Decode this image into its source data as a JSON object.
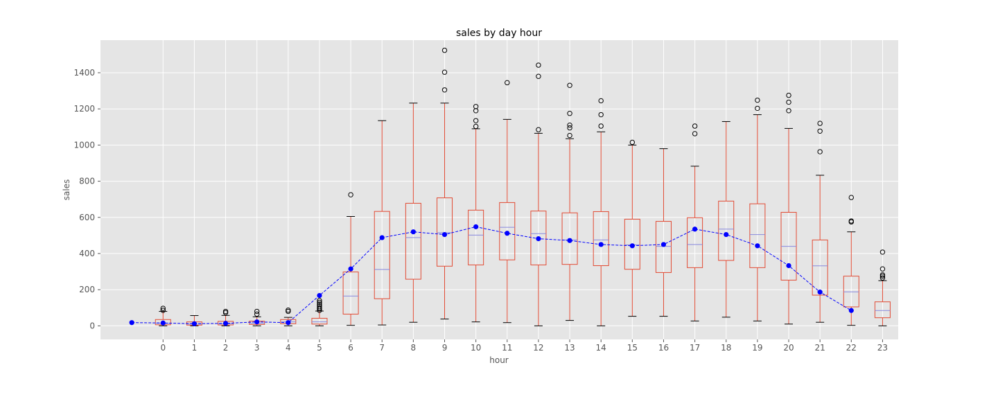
{
  "chart_data": {
    "type": "box",
    "title": "sales by day hour",
    "xlabel": "hour",
    "ylabel": "sales",
    "categories": [
      "0",
      "1",
      "2",
      "3",
      "4",
      "5",
      "6",
      "7",
      "8",
      "9",
      "10",
      "11",
      "12",
      "13",
      "14",
      "15",
      "16",
      "17",
      "18",
      "19",
      "20",
      "21",
      "22",
      "23"
    ],
    "x_range": [
      -2,
      23.5
    ],
    "ylim": [
      -75,
      1580
    ],
    "yticks": [
      0,
      200,
      400,
      600,
      800,
      1000,
      1200,
      1400
    ],
    "grid": true,
    "background": "#E5E5E5",
    "box_color": "#E24A33",
    "median_color": "#8888DD",
    "mean_color": "#0000FF",
    "boxes": [
      {
        "x": 0,
        "whislo": 0,
        "q1": 6,
        "med": 14,
        "q3": 35,
        "whishi": 80,
        "fliers": [
          86,
          97
        ]
      },
      {
        "x": 1,
        "whislo": 0,
        "q1": 4,
        "med": 10,
        "q3": 22,
        "whishi": 57,
        "fliers": []
      },
      {
        "x": 2,
        "whislo": 0,
        "q1": 5,
        "med": 11,
        "q3": 25,
        "whishi": 58,
        "fliers": [
          73,
          80
        ]
      },
      {
        "x": 3,
        "whislo": 0,
        "q1": 8,
        "med": 15,
        "q3": 26,
        "whishi": 50,
        "fliers": [
          65,
          80
        ]
      },
      {
        "x": 4,
        "whislo": 0,
        "q1": 12,
        "med": 22,
        "q3": 35,
        "whishi": 47,
        "fliers": [
          80,
          87
        ]
      },
      {
        "x": 5,
        "whislo": 0,
        "q1": 10,
        "med": 22,
        "q3": 42,
        "whishi": 82,
        "fliers": [
          86,
          95,
          100,
          110,
          120,
          130,
          140
        ]
      },
      {
        "x": 6,
        "whislo": 3,
        "q1": 65,
        "med": 165,
        "q3": 298,
        "whishi": 605,
        "fliers": [
          725
        ]
      },
      {
        "x": 7,
        "whislo": 5,
        "q1": 150,
        "med": 312,
        "q3": 633,
        "whishi": 1135,
        "fliers": []
      },
      {
        "x": 8,
        "whislo": 20,
        "q1": 258,
        "med": 488,
        "q3": 678,
        "whishi": 1232,
        "fliers": []
      },
      {
        "x": 9,
        "whislo": 38,
        "q1": 330,
        "med": 515,
        "q3": 708,
        "whishi": 1232,
        "fliers": [
          1305,
          1403,
          1524
        ]
      },
      {
        "x": 10,
        "whislo": 22,
        "q1": 337,
        "med": 502,
        "q3": 640,
        "whishi": 1090,
        "fliers": [
          1103,
          1135,
          1190,
          1213
        ]
      },
      {
        "x": 11,
        "whislo": 18,
        "q1": 365,
        "med": 545,
        "q3": 682,
        "whishi": 1142,
        "fliers": [
          1345
        ]
      },
      {
        "x": 12,
        "whislo": 0,
        "q1": 337,
        "med": 510,
        "q3": 635,
        "whishi": 1065,
        "fliers": [
          1085,
          1380,
          1442
        ]
      },
      {
        "x": 13,
        "whislo": 30,
        "q1": 340,
        "med": 475,
        "q3": 625,
        "whishi": 1035,
        "fliers": [
          1053,
          1095,
          1110,
          1175,
          1330
        ]
      },
      {
        "x": 14,
        "whislo": 0,
        "q1": 333,
        "med": 475,
        "q3": 632,
        "whishi": 1073,
        "fliers": [
          1105,
          1168,
          1245
        ]
      },
      {
        "x": 15,
        "whislo": 53,
        "q1": 313,
        "med": 448,
        "q3": 590,
        "whishi": 1000,
        "fliers": [
          1015
        ]
      },
      {
        "x": 16,
        "whislo": 53,
        "q1": 295,
        "med": 440,
        "q3": 578,
        "whishi": 980,
        "fliers": []
      },
      {
        "x": 17,
        "whislo": 27,
        "q1": 322,
        "med": 450,
        "q3": 598,
        "whishi": 883,
        "fliers": [
          1063,
          1105
        ]
      },
      {
        "x": 18,
        "whislo": 48,
        "q1": 362,
        "med": 535,
        "q3": 690,
        "whishi": 1130,
        "fliers": []
      },
      {
        "x": 19,
        "whislo": 27,
        "q1": 322,
        "med": 505,
        "q3": 675,
        "whishi": 1168,
        "fliers": [
          1203,
          1248
        ]
      },
      {
        "x": 20,
        "whislo": 10,
        "q1": 253,
        "med": 440,
        "q3": 628,
        "whishi": 1092,
        "fliers": [
          1190,
          1237,
          1275
        ]
      },
      {
        "x": 21,
        "whislo": 20,
        "q1": 170,
        "med": 332,
        "q3": 475,
        "whishi": 833,
        "fliers": [
          963,
          1077,
          1120
        ]
      },
      {
        "x": 22,
        "whislo": 3,
        "q1": 105,
        "med": 188,
        "q3": 275,
        "whishi": 520,
        "fliers": [
          575,
          580,
          710
        ]
      },
      {
        "x": 23,
        "whislo": 0,
        "q1": 45,
        "med": 85,
        "q3": 133,
        "whishi": 250,
        "fliers": [
          265,
          275,
          282,
          315,
          408
        ]
      }
    ],
    "mean_line": {
      "x": [
        -1,
        0,
        1,
        2,
        3,
        4,
        5,
        6,
        7,
        8,
        9,
        10,
        11,
        12,
        13,
        14,
        15,
        16,
        17,
        18,
        19,
        20,
        21,
        22
      ],
      "y": [
        18,
        16,
        12,
        14,
        22,
        18,
        168,
        315,
        488,
        520,
        505,
        548,
        512,
        482,
        472,
        450,
        443,
        450,
        535,
        505,
        443,
        333,
        187,
        85
      ]
    }
  }
}
